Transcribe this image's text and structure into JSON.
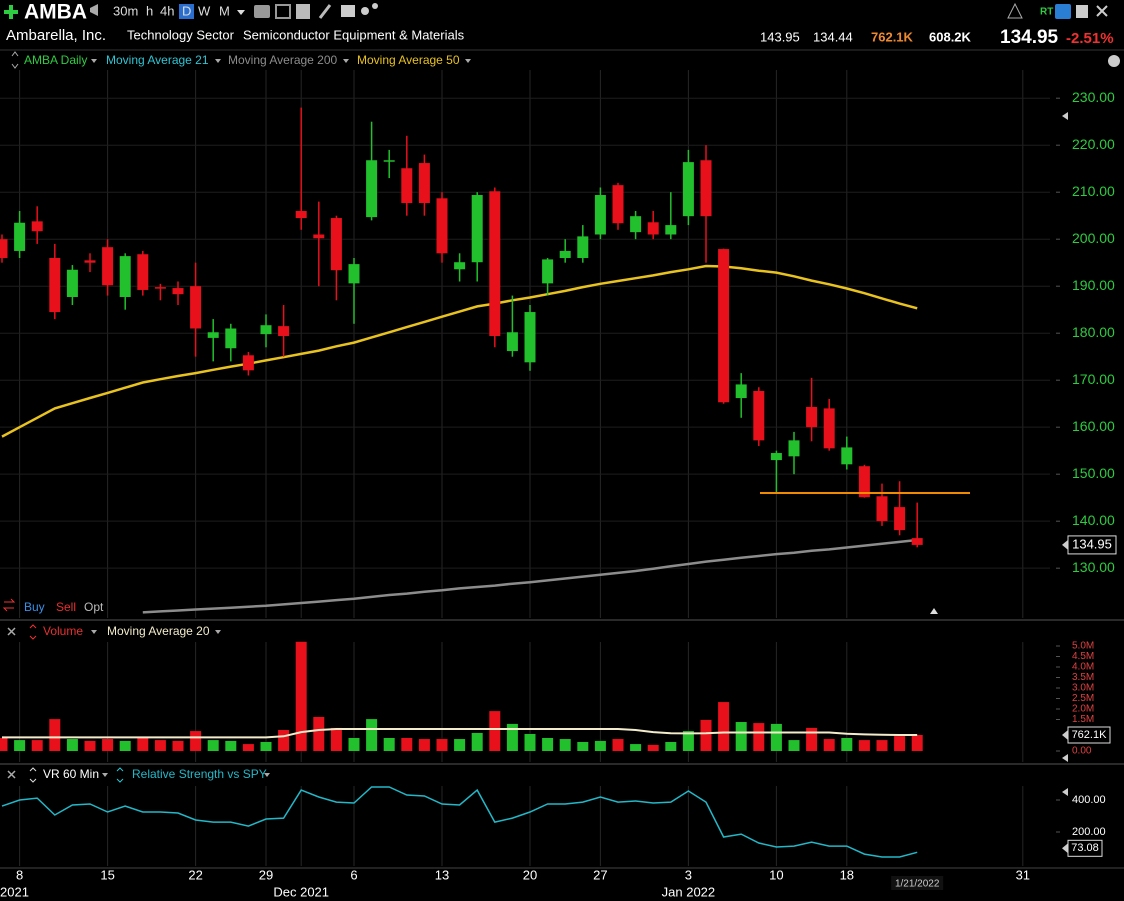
{
  "header": {
    "symbol": "AMBA",
    "timeframes": [
      "30m",
      "h",
      "4h",
      "D",
      "W",
      "M"
    ],
    "realtime": "RT",
    "company": "Ambarella, Inc.",
    "sector": "Technology Sector",
    "industry": "Semiconductor Equipment & Materials",
    "high": 143.95,
    "low": 134.44,
    "volume": "762.1K",
    "avg_volume": "608.2K",
    "last": 134.95,
    "change": "-2.51%",
    "trade_buttons": [
      "Buy",
      "Sell",
      "Opt"
    ]
  },
  "x_axis": {
    "categories": [
      null,
      "8",
      null,
      null,
      null,
      null,
      "15",
      null,
      null,
      null,
      null,
      "22",
      null,
      null,
      null,
      "29",
      null,
      null,
      null,
      null,
      "6",
      null,
      null,
      null,
      null,
      "13",
      null,
      null,
      null,
      null,
      "20",
      null,
      null,
      null,
      "27",
      null,
      null,
      null,
      null,
      "3",
      null,
      null,
      null,
      null,
      "10",
      null,
      null,
      null,
      "18",
      null,
      null,
      null,
      null,
      null,
      null,
      null,
      null,
      null,
      "31",
      null
    ],
    "periods": [
      "2021",
      null,
      null,
      null,
      null,
      null,
      null,
      null,
      null,
      null,
      null,
      null,
      null,
      null,
      null,
      null,
      null,
      "Dec 2021",
      null,
      null,
      null,
      null,
      null,
      null,
      null,
      null,
      null,
      null,
      null,
      null,
      null,
      null,
      null,
      null,
      null,
      null,
      null,
      null,
      null,
      "Jan 2022",
      null,
      null,
      null,
      null,
      null,
      null,
      null,
      null,
      null,
      null,
      null,
      null,
      "1/21/2022",
      null,
      null,
      null,
      null,
      null,
      null,
      null
    ]
  },
  "chart_data": [
    {
      "type": "candlestick",
      "title": "AMBA Daily",
      "up_color": "#22c02c",
      "down_color": "#e8101a",
      "axis_color": "#2ecc40",
      "open": [
        200,
        197.5,
        203.8,
        196,
        187.7,
        195.5,
        198.3,
        187.7,
        196.8,
        189.8,
        189.6,
        190,
        179,
        176.8,
        175.3,
        179.8,
        181.5,
        206,
        201,
        204.5,
        190.6,
        204.7,
        216.6,
        215.1,
        216.2,
        208.7,
        193.6,
        195.1,
        210.2,
        176.2,
        173.8,
        190.6,
        196,
        196,
        201,
        211.5,
        201.5,
        203.6,
        201,
        204.9,
        216.8,
        197.9,
        166.2,
        167.7,
        153,
        153.8,
        164.3,
        164,
        152.1,
        151.7,
        145.3,
        143,
        136.4
      ],
      "high": [
        201,
        206,
        207,
        199,
        194.5,
        197,
        200,
        197,
        197.5,
        190.5,
        191,
        195,
        183,
        182,
        176,
        184,
        186,
        228,
        208,
        205,
        196,
        225,
        219,
        222,
        218,
        210,
        197,
        210,
        211,
        188,
        186,
        196,
        200,
        203,
        211,
        212,
        206,
        206,
        210,
        219,
        220,
        198,
        171.5,
        168.5,
        155,
        159,
        170.5,
        166,
        158,
        152,
        148,
        148.5,
        143.95
      ],
      "low": [
        195,
        196,
        199,
        183,
        186,
        193,
        188,
        185,
        188,
        187,
        186,
        175,
        174,
        174,
        171,
        177,
        175,
        202,
        190,
        187,
        182,
        204,
        213,
        205,
        205,
        195,
        191,
        191,
        177,
        175,
        172,
        188,
        195,
        195,
        200,
        202,
        200,
        200,
        200,
        203,
        195,
        165,
        162,
        156,
        146,
        150,
        157,
        155,
        151,
        145,
        139,
        137,
        134.44
      ],
      "close": [
        196,
        203.5,
        201.7,
        184.5,
        193.5,
        195,
        190.2,
        196.4,
        189.2,
        189.5,
        188.3,
        181,
        180.2,
        181,
        172.1,
        181.7,
        179.4,
        204.5,
        200.2,
        193.4,
        194.7,
        216.8,
        216.8,
        207.7,
        207.7,
        197,
        195.1,
        209.4,
        179.4,
        180.2,
        184.5,
        195.7,
        197.5,
        200.6,
        209.4,
        203.4,
        204.9,
        201,
        203,
        216.4,
        204.9,
        165.3,
        169.1,
        157.2,
        154.5,
        157.2,
        160,
        155.5,
        155.7,
        145.1,
        140,
        138.1,
        134.95
      ],
      "overlays": [
        {
          "name": "Moving Average 21",
          "color": "#2ec5d3"
        },
        {
          "name": "Moving Average 200",
          "color": "#8c8c8c",
          "values": [
            null,
            null,
            null,
            null,
            null,
            null,
            null,
            null,
            120.6,
            120.8,
            121,
            121.2,
            121.4,
            121.6,
            121.8,
            122,
            122.3,
            122.6,
            122.9,
            123.2,
            123.5,
            123.9,
            124.3,
            124.6,
            125,
            125.3,
            125.7,
            126,
            126.3,
            126.7,
            127,
            127.4,
            127.8,
            128.2,
            128.6,
            129,
            129.4,
            129.9,
            130.4,
            130.9,
            131.4,
            131.8,
            132.2,
            132.6,
            133,
            133.3,
            133.7,
            134,
            134.4,
            134.8,
            135.2,
            135.6,
            136
          ]
        },
        {
          "name": "Moving Average 50",
          "color": "#e8c21e",
          "values": [
            158,
            160,
            162,
            164,
            165.1,
            166.2,
            167.3,
            168.4,
            169.5,
            170.2,
            170.9,
            171.5,
            172.2,
            172.9,
            173.5,
            174.2,
            174.9,
            175.6,
            176.3,
            177.2,
            178,
            179.1,
            180.2,
            181.3,
            182.4,
            183.5,
            184.6,
            185.7,
            186.3,
            187,
            187.6,
            188.3,
            189,
            189.8,
            190.5,
            191.1,
            191.7,
            192.3,
            193,
            193.6,
            194.3,
            194.2,
            193.8,
            193.3,
            192.9,
            192.1,
            191.2,
            190.4,
            189.5,
            188.5,
            187.4,
            186.3,
            185.3
          ]
        }
      ],
      "horizontal_line": {
        "value": 146,
        "color": "#f08a00"
      },
      "ylim": [
        119.4,
        236
      ],
      "yticks": [
        {
          "value": 130,
          "label": "130.00"
        },
        {
          "value": 140,
          "label": "140.00"
        },
        {
          "value": 150,
          "label": "150.00"
        },
        {
          "value": 160,
          "label": "160.00"
        },
        {
          "value": 170,
          "label": "170.00"
        },
        {
          "value": 180,
          "label": "180.00"
        },
        {
          "value": 190,
          "label": "190.00"
        },
        {
          "value": 200,
          "label": "200.00"
        },
        {
          "value": 210,
          "label": "210.00"
        },
        {
          "value": 220,
          "label": "220.00"
        },
        {
          "value": 230,
          "label": "230.00"
        }
      ],
      "grid": true
    },
    {
      "type": "bar",
      "title": "Volume",
      "axis_color": "#e04040",
      "series": [
        {
          "name": "Volume",
          "values": [
            620000,
            520000,
            520000,
            1520000,
            570000,
            480000,
            570000,
            480000,
            620000,
            520000,
            480000,
            950000,
            520000,
            480000,
            330000,
            430000,
            1000000,
            5200000,
            1620000,
            1100000,
            620000,
            1520000,
            620000,
            620000,
            570000,
            570000,
            570000,
            860000,
            1900000,
            1290000,
            810000,
            620000,
            570000,
            430000,
            480000,
            570000,
            330000,
            290000,
            430000,
            950000,
            1480000,
            2330000,
            1380000,
            1330000,
            1290000,
            520000,
            1100000,
            570000,
            620000,
            520000,
            520000,
            710000,
            762100
          ]
        },
        {
          "name": "Moving Average 20",
          "color": "#f3eccb",
          "values": [
            650000,
            650000,
            650000,
            650000,
            650000,
            650000,
            650000,
            650000,
            650000,
            650000,
            650000,
            650000,
            650000,
            650000,
            650000,
            650000,
            700000,
            900000,
            1000000,
            1050000,
            1050000,
            1050000,
            1050000,
            1050000,
            1050000,
            1050000,
            1050000,
            1050000,
            1050000,
            1050000,
            1050000,
            1050000,
            1050000,
            1050000,
            1050000,
            1050000,
            1000000,
            900000,
            850000,
            840000,
            850000,
            880000,
            880000,
            880000,
            880000,
            880000,
            880000,
            880000,
            820000,
            790000,
            770000,
            760000,
            760000
          ]
        }
      ],
      "ylim": [
        -190000,
        5190000
      ],
      "yticks": [
        {
          "value": 0,
          "label": "0.00"
        },
        {
          "value": 1500000,
          "label": "1.5M"
        },
        {
          "value": 2000000,
          "label": "2.0M"
        },
        {
          "value": 2500000,
          "label": "2.5M"
        },
        {
          "value": 3000000,
          "label": "3.0M"
        },
        {
          "value": 3500000,
          "label": "3.5M"
        },
        {
          "value": 4000000,
          "label": "4.0M"
        },
        {
          "value": 4500000,
          "label": "4.5M"
        },
        {
          "value": 5000000,
          "label": "5.0M"
        }
      ]
    },
    {
      "type": "line",
      "title": "VR 60 Min",
      "axis_color": "#ffffff",
      "series": [
        {
          "name": "Relative Strength vs SPY",
          "color": "#22b8c8",
          "values": [
            362,
            400,
            412,
            306,
            369,
            375,
            325,
            362,
            325,
            325,
            319,
            275,
            262,
            262,
            237,
            281,
            287,
            462,
            419,
            387,
            381,
            481,
            481,
            431,
            425,
            375,
            369,
            462,
            262,
            287,
            325,
            375,
            375,
            387,
            419,
            387,
            394,
            381,
            387,
            456,
            387,
            169,
            187,
            131,
            106,
            112,
            137,
            112,
            112,
            62,
            44,
            44,
            73.08
          ]
        }
      ],
      "ylim": [
        -37.5,
        493.75
      ],
      "yticks": [
        {
          "value": 200,
          "label": "200.00"
        },
        {
          "value": 400,
          "label": "400.00"
        }
      ]
    }
  ]
}
